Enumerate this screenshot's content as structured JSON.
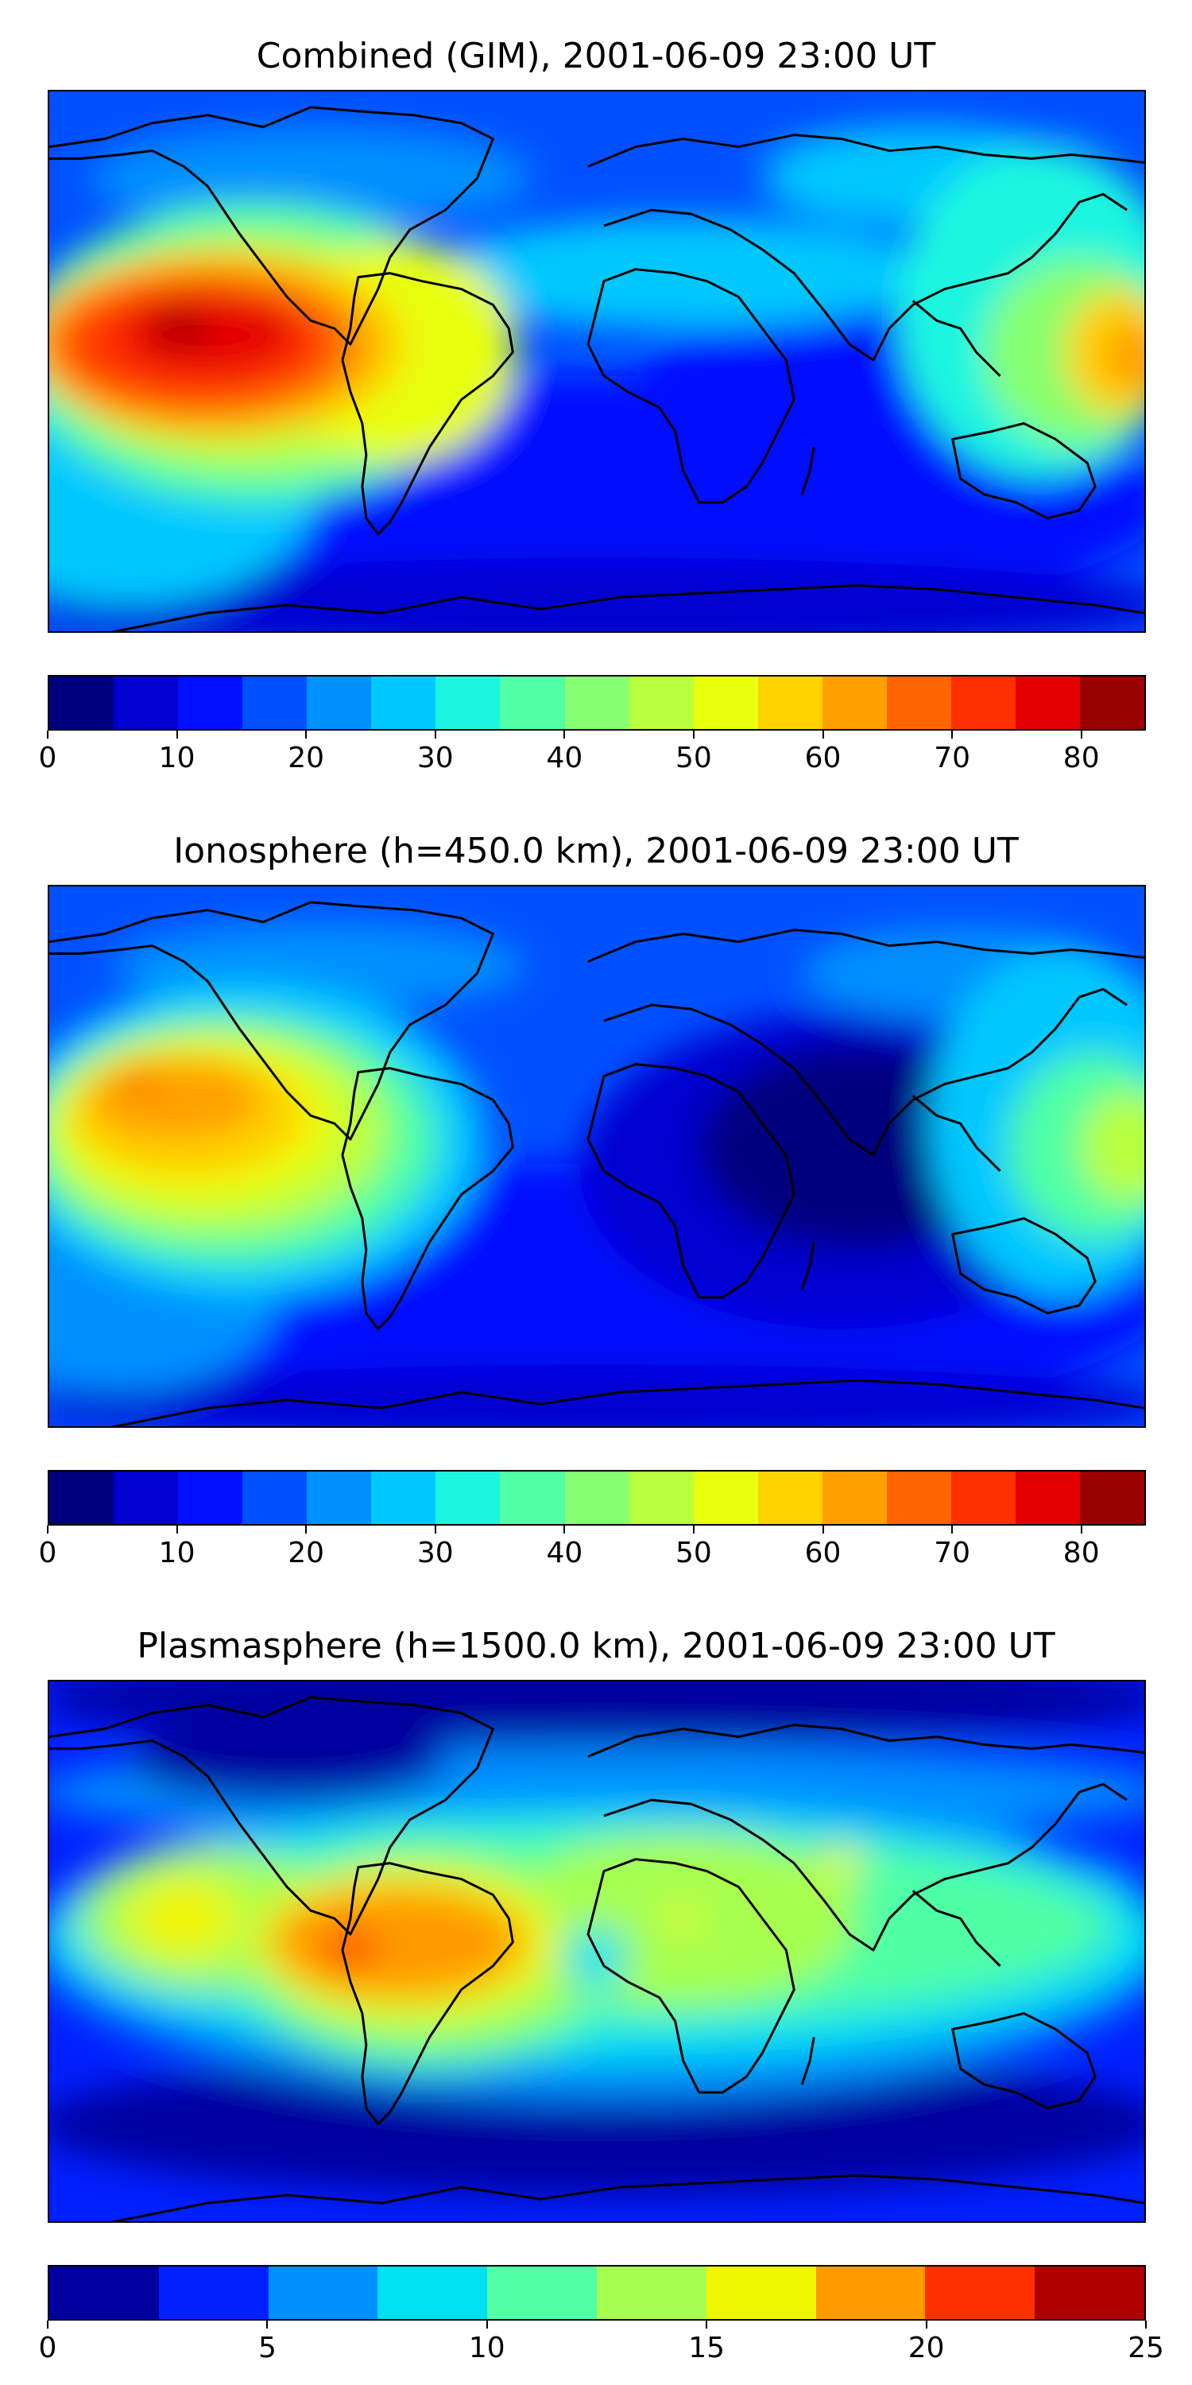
{
  "panels": [
    {
      "title": "Combined (GIM), 2001-06-09 23:00 UT",
      "colorbar": {
        "min": 0,
        "max": 85,
        "colors": [
          "#00007f",
          "#0000d0",
          "#0010ff",
          "#0050ff",
          "#0090ff",
          "#00c8ff",
          "#1ef5e0",
          "#50ffa6",
          "#86ff70",
          "#b8ff3d",
          "#e8ff0e",
          "#ffd200",
          "#ffa000",
          "#ff6400",
          "#ff3000",
          "#e30000",
          "#9a0000"
        ],
        "tick_labels": [
          "0",
          "10",
          "20",
          "30",
          "40",
          "50",
          "60",
          "70",
          "80"
        ],
        "tick_values": [
          0,
          10,
          20,
          30,
          40,
          50,
          60,
          70,
          80
        ]
      }
    },
    {
      "title": "Ionosphere  (h=450.0 km), 2001-06-09 23:00 UT",
      "colorbar": {
        "min": 0,
        "max": 85,
        "colors": [
          "#00007f",
          "#0000d0",
          "#0010ff",
          "#0050ff",
          "#0090ff",
          "#00c8ff",
          "#1ef5e0",
          "#50ffa6",
          "#86ff70",
          "#b8ff3d",
          "#e8ff0e",
          "#ffd200",
          "#ffa000",
          "#ff6400",
          "#ff3000",
          "#e30000",
          "#9a0000"
        ],
        "tick_labels": [
          "0",
          "10",
          "20",
          "30",
          "40",
          "50",
          "60",
          "70",
          "80"
        ],
        "tick_values": [
          0,
          10,
          20,
          30,
          40,
          50,
          60,
          70,
          80
        ]
      }
    },
    {
      "title": "Plasmasphere (h=1500.0 km), 2001-06-09 23:00 UT",
      "colorbar": {
        "min": 0,
        "max": 25,
        "colors": [
          "#00009f",
          "#0020ff",
          "#0090ff",
          "#00e0f0",
          "#50ffa6",
          "#a6ff50",
          "#f0f500",
          "#ff9a00",
          "#ff3000",
          "#b00000"
        ],
        "tick_labels": [
          "0",
          "5",
          "10",
          "15",
          "20",
          "25"
        ],
        "tick_values": [
          0,
          5,
          10,
          15,
          20,
          25
        ]
      }
    }
  ]
}
